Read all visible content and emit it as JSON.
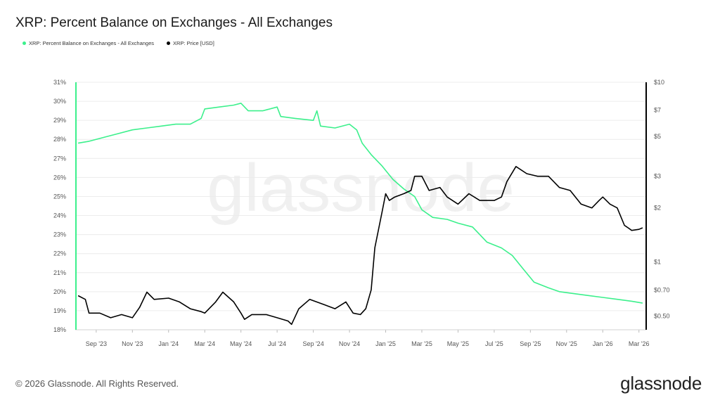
{
  "header": {
    "title": "XRP: Percent Balance on Exchanges - All Exchanges"
  },
  "legend": [
    {
      "label": "XRP: Percent Balance on Exchanges - All Exchanges",
      "color": "#3cf08c"
    },
    {
      "label": "XRP: Price [USD]",
      "color": "#000000"
    }
  ],
  "watermark": "glassnode",
  "footer": {
    "copyright": "© 2026 Glassnode. All Rights Reserved.",
    "brand": "glassnode"
  },
  "chart_data": {
    "type": "line",
    "x_tick_labels": [
      "Sep '23",
      "Nov '23",
      "Jan '24",
      "Mar '24",
      "May '24",
      "Jul '24",
      "Sep '24",
      "Nov '24",
      "Jan '25",
      "Mar '25",
      "May '25",
      "Jul '25",
      "Sep '25",
      "Nov '25",
      "Jan '26",
      "Mar '26"
    ],
    "x_range": [
      -0.58,
      15.2
    ],
    "left_axis": {
      "ticks": [
        "31%",
        "30%",
        "29%",
        "28%",
        "27%",
        "26%",
        "25%",
        "24%",
        "23%",
        "22%",
        "21%",
        "20%",
        "19%",
        "18%"
      ],
      "ylim": [
        18,
        31
      ],
      "unit": "%"
    },
    "right_axis": {
      "scale": "log",
      "ticks": [
        "$10",
        "$7",
        "$5",
        "$3",
        "$2",
        "$1",
        "$0.70",
        "$0.50"
      ],
      "tick_values": [
        10,
        7,
        5,
        3,
        2,
        1,
        0.7,
        0.5
      ],
      "ylim": [
        0.42,
        10
      ]
    },
    "series": [
      {
        "name": "XRP: Percent Balance on Exchanges - All Exchanges",
        "axis": "left",
        "color": "#3cf08c",
        "points": [
          [
            -0.5,
            27.8
          ],
          [
            -0.2,
            27.9
          ],
          [
            0.2,
            28.1
          ],
          [
            0.6,
            28.3
          ],
          [
            1.0,
            28.5
          ],
          [
            1.4,
            28.6
          ],
          [
            1.8,
            28.7
          ],
          [
            2.2,
            28.8
          ],
          [
            2.6,
            28.8
          ],
          [
            2.9,
            29.1
          ],
          [
            3.0,
            29.6
          ],
          [
            3.4,
            29.7
          ],
          [
            3.8,
            29.8
          ],
          [
            4.0,
            29.9
          ],
          [
            4.2,
            29.5
          ],
          [
            4.6,
            29.5
          ],
          [
            5.0,
            29.7
          ],
          [
            5.1,
            29.2
          ],
          [
            5.5,
            29.1
          ],
          [
            6.0,
            29.0
          ],
          [
            6.1,
            29.5
          ],
          [
            6.2,
            28.7
          ],
          [
            6.6,
            28.6
          ],
          [
            7.0,
            28.8
          ],
          [
            7.2,
            28.5
          ],
          [
            7.35,
            27.8
          ],
          [
            7.6,
            27.2
          ],
          [
            7.9,
            26.6
          ],
          [
            8.2,
            25.9
          ],
          [
            8.5,
            25.4
          ],
          [
            8.8,
            25.0
          ],
          [
            9.0,
            24.3
          ],
          [
            9.3,
            23.9
          ],
          [
            9.7,
            23.8
          ],
          [
            10.0,
            23.6
          ],
          [
            10.4,
            23.4
          ],
          [
            10.6,
            23.0
          ],
          [
            10.8,
            22.6
          ],
          [
            11.2,
            22.3
          ],
          [
            11.5,
            21.9
          ],
          [
            11.8,
            21.2
          ],
          [
            12.1,
            20.5
          ],
          [
            12.5,
            20.2
          ],
          [
            12.8,
            20.0
          ],
          [
            13.2,
            19.9
          ],
          [
            13.6,
            19.8
          ],
          [
            14.0,
            19.7
          ],
          [
            14.4,
            19.6
          ],
          [
            14.8,
            19.5
          ],
          [
            15.1,
            19.4
          ]
        ]
      },
      {
        "name": "XRP: Price [USD]",
        "axis": "right",
        "color": "#000000",
        "points": [
          [
            -0.5,
            0.65
          ],
          [
            -0.3,
            0.62
          ],
          [
            -0.2,
            0.52
          ],
          [
            0.1,
            0.52
          ],
          [
            0.4,
            0.49
          ],
          [
            0.7,
            0.51
          ],
          [
            1.0,
            0.49
          ],
          [
            1.2,
            0.56
          ],
          [
            1.4,
            0.68
          ],
          [
            1.6,
            0.62
          ],
          [
            2.0,
            0.63
          ],
          [
            2.3,
            0.6
          ],
          [
            2.6,
            0.55
          ],
          [
            2.9,
            0.53
          ],
          [
            3.0,
            0.52
          ],
          [
            3.3,
            0.6
          ],
          [
            3.5,
            0.68
          ],
          [
            3.8,
            0.6
          ],
          [
            4.0,
            0.52
          ],
          [
            4.1,
            0.48
          ],
          [
            4.3,
            0.51
          ],
          [
            4.7,
            0.51
          ],
          [
            5.0,
            0.49
          ],
          [
            5.3,
            0.47
          ],
          [
            5.4,
            0.45
          ],
          [
            5.6,
            0.55
          ],
          [
            5.9,
            0.62
          ],
          [
            6.3,
            0.58
          ],
          [
            6.6,
            0.55
          ],
          [
            6.9,
            0.6
          ],
          [
            7.1,
            0.52
          ],
          [
            7.3,
            0.51
          ],
          [
            7.45,
            0.55
          ],
          [
            7.6,
            0.7
          ],
          [
            7.7,
            1.2
          ],
          [
            7.9,
            1.9
          ],
          [
            8.0,
            2.4
          ],
          [
            8.1,
            2.2
          ],
          [
            8.25,
            2.3
          ],
          [
            8.5,
            2.4
          ],
          [
            8.7,
            2.5
          ],
          [
            8.8,
            3.0
          ],
          [
            9.0,
            3.0
          ],
          [
            9.2,
            2.5
          ],
          [
            9.5,
            2.6
          ],
          [
            9.7,
            2.3
          ],
          [
            10.0,
            2.1
          ],
          [
            10.3,
            2.4
          ],
          [
            10.6,
            2.2
          ],
          [
            11.0,
            2.2
          ],
          [
            11.2,
            2.3
          ],
          [
            11.35,
            2.8
          ],
          [
            11.6,
            3.4
          ],
          [
            11.9,
            3.1
          ],
          [
            12.2,
            3.0
          ],
          [
            12.5,
            3.0
          ],
          [
            12.8,
            2.6
          ],
          [
            13.1,
            2.5
          ],
          [
            13.4,
            2.1
          ],
          [
            13.7,
            2.0
          ],
          [
            13.9,
            2.2
          ],
          [
            14.0,
            2.3
          ],
          [
            14.2,
            2.1
          ],
          [
            14.4,
            2.0
          ],
          [
            14.6,
            1.6
          ],
          [
            14.7,
            1.55
          ],
          [
            14.8,
            1.5
          ],
          [
            15.0,
            1.52
          ],
          [
            15.1,
            1.55
          ]
        ]
      }
    ],
    "grid": true,
    "legend_position": "top-left"
  }
}
